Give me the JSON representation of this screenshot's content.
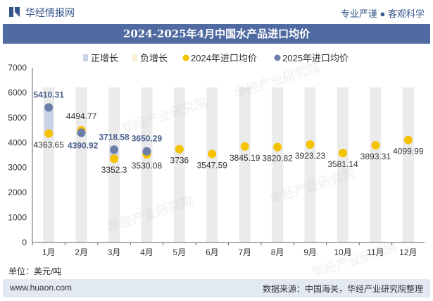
{
  "header": {
    "brand": "华经情报网",
    "slogan": "专业严谨 ● 客观科学"
  },
  "chart_data": {
    "type": "bar+scatter",
    "title": "2024-2025年4月中国水产品进口均价",
    "unit_label": "单位：美元/吨",
    "categories": [
      "1月",
      "2月",
      "3月",
      "4月",
      "5月",
      "6月",
      "7月",
      "8月",
      "9月",
      "10月",
      "11月",
      "12月"
    ],
    "ylim": [
      0,
      7000
    ],
    "yticks": [
      0,
      1000,
      2000,
      3000,
      4000,
      5000,
      6000,
      7000
    ],
    "legend": [
      "正增长",
      "负增长",
      "2024年进口均价",
      "2025年进口均价"
    ],
    "legend_position": "top",
    "series": [
      {
        "name": "2024年进口均价",
        "values": [
          4363.65,
          4494.77,
          3352.3,
          3530.08,
          3736,
          3547.59,
          3845.19,
          3820.82,
          3923.23,
          3581.14,
          3893.31,
          4099.99
        ]
      },
      {
        "name": "2025年进口均价",
        "values": [
          5410.31,
          4390.92,
          3718.58,
          3650.29,
          null,
          null,
          null,
          null,
          null,
          null,
          null,
          null
        ]
      }
    ],
    "labels_2024": [
      "4363.65",
      "4494.77",
      "3352.3",
      "3530.08",
      "3736",
      "3547.59",
      "3845.19",
      "3820.82",
      "3923.23",
      "3581.14",
      "3893.31",
      "4099.99"
    ],
    "labels_2025": [
      "5410.31",
      "4390.92",
      "3718.58",
      "3650.29"
    ],
    "colors": {
      "positive": "#c9d3e6",
      "negative": "#fdf0d2",
      "y2024": "#f5c200",
      "y2025": "#6a7ea8",
      "background_bar": "#ebebeb"
    }
  },
  "footer": {
    "site": "www.huaon.com",
    "source": "数据来源：中国海关，华经产业研究院整理"
  },
  "watermarks": [
    "华经产业研究院",
    "华经产业研究院",
    "华经产业研究院",
    "华经产业研究院",
    "华经产业研究院"
  ]
}
